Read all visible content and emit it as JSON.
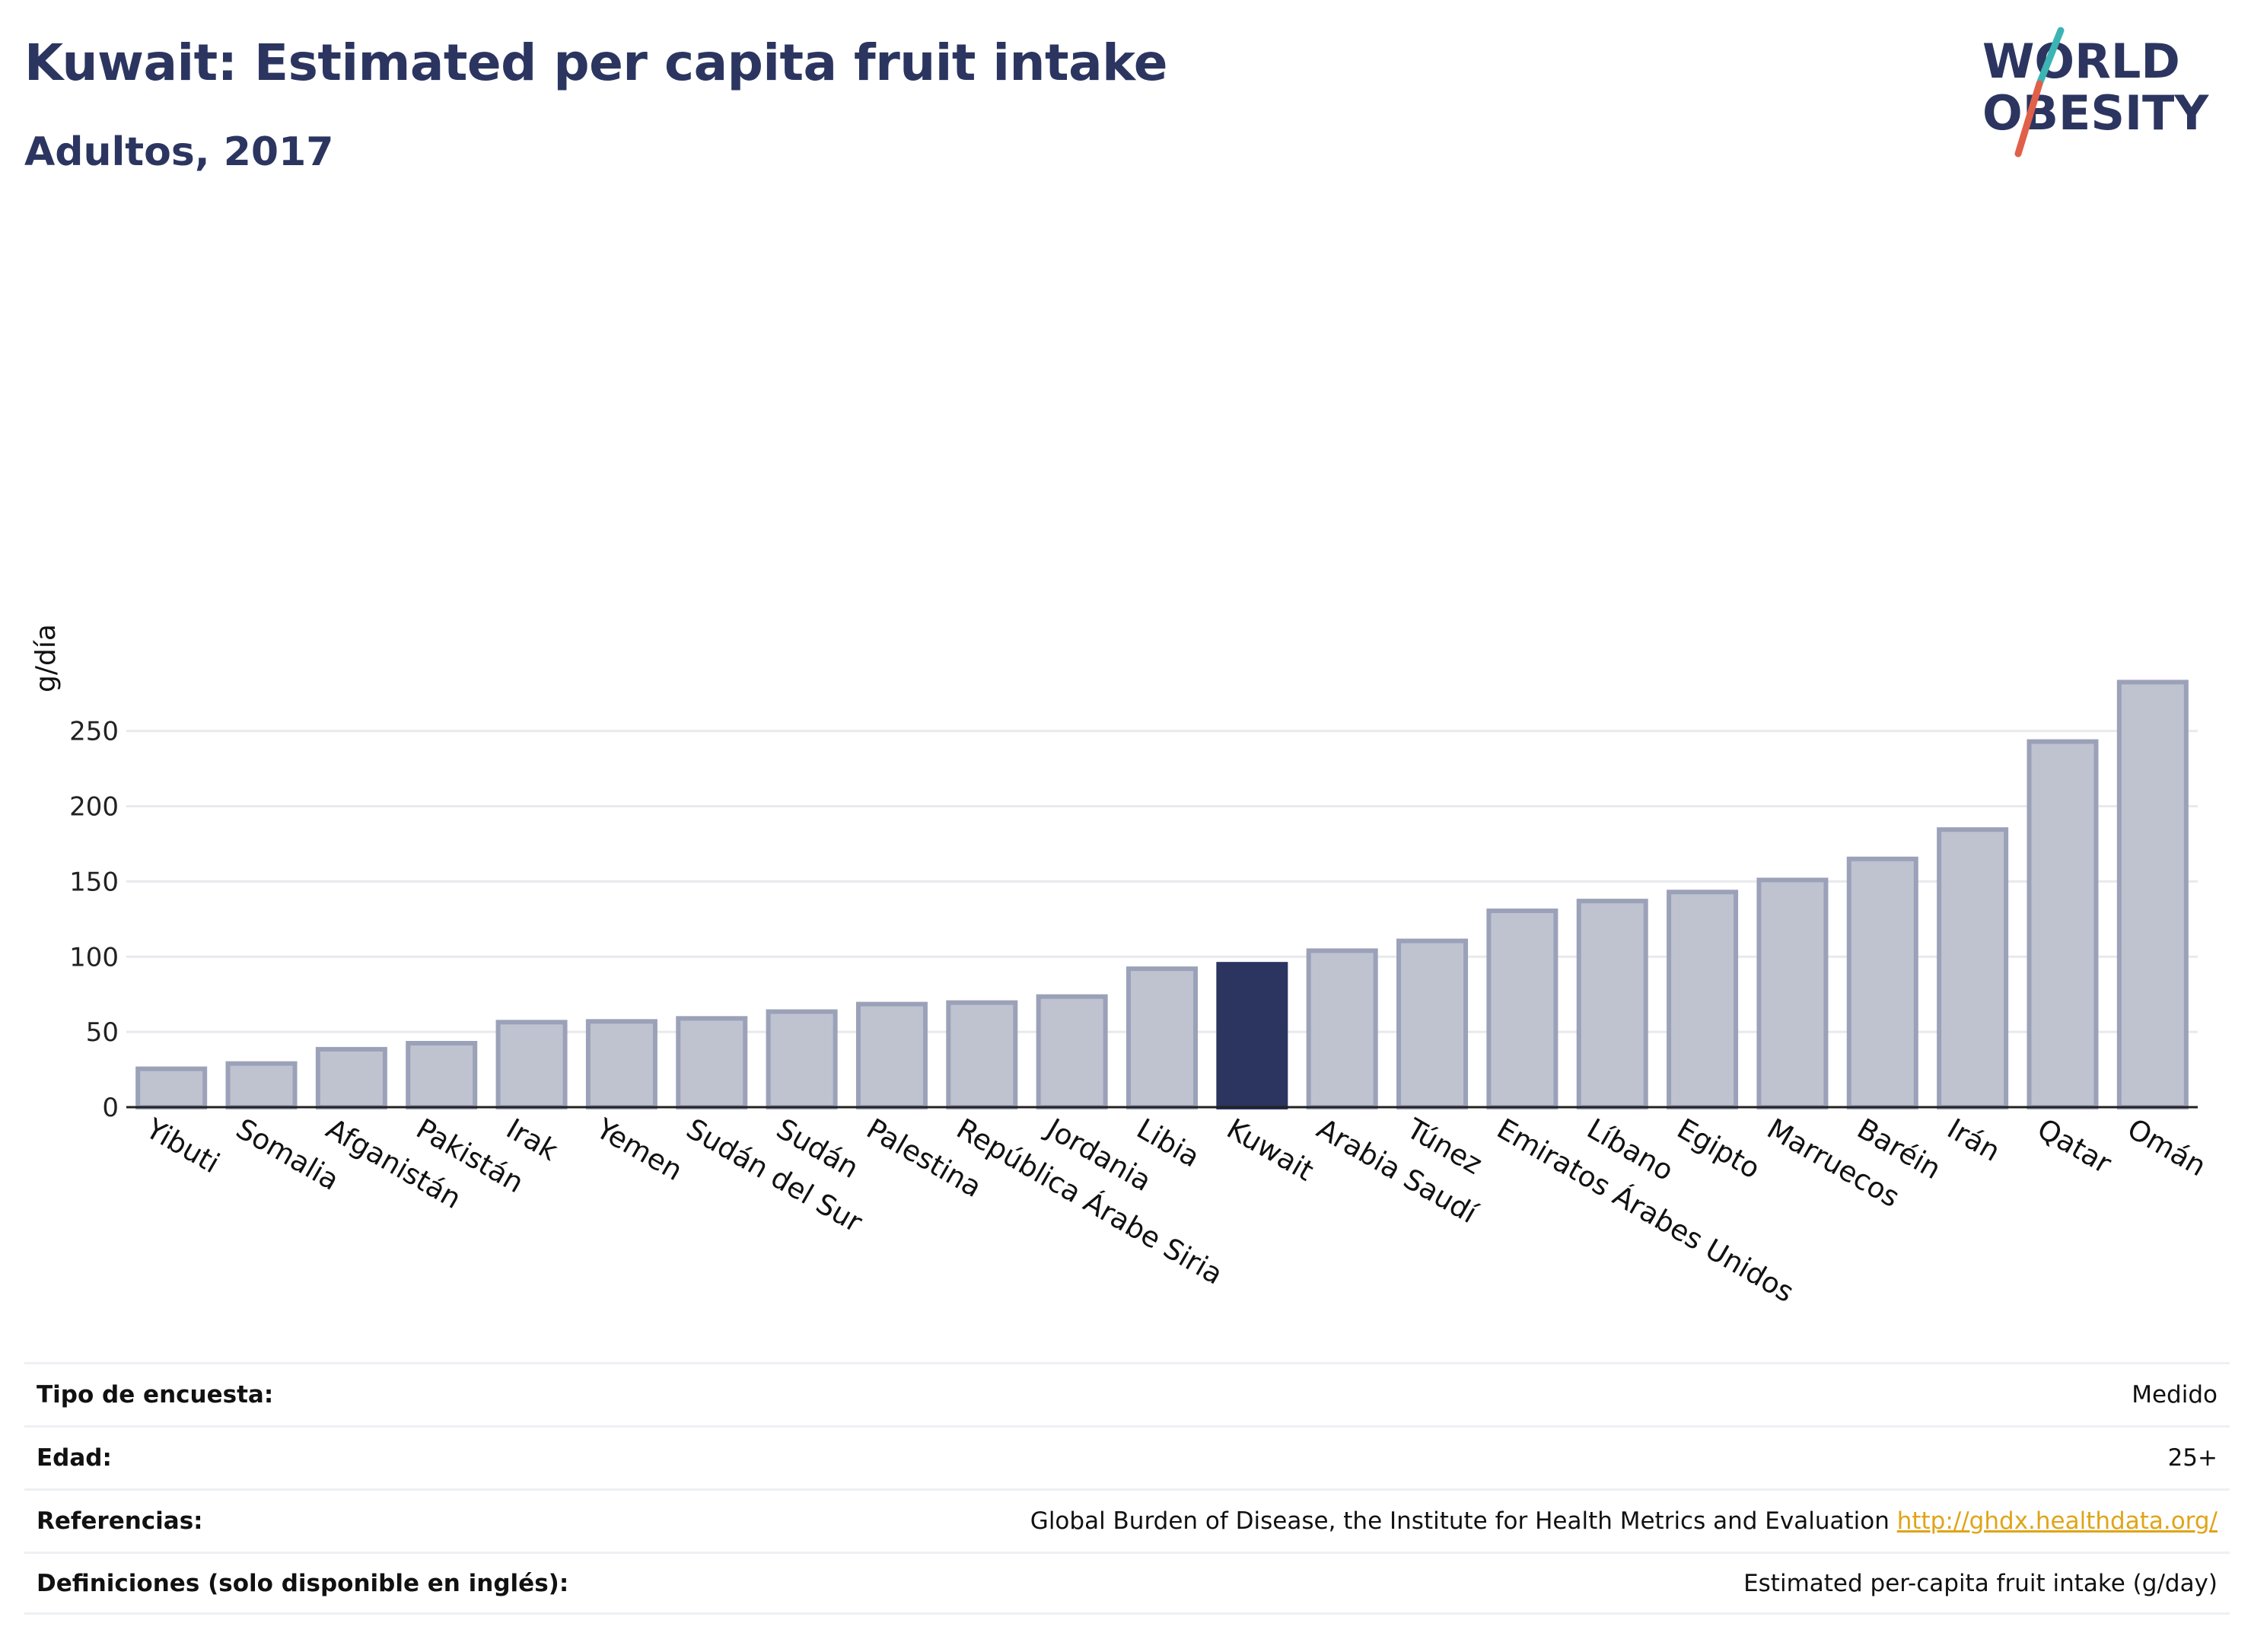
{
  "header": {
    "title": "Kuwait: Estimated per capita fruit intake",
    "subtitle": "Adultos, 2017"
  },
  "logo": {
    "line1": "WORLD",
    "line2": "OBESITY",
    "colors": {
      "text": "#2b3560",
      "slash_red": "#e0604a",
      "slash_teal": "#3cb4b4"
    }
  },
  "colors": {
    "highlight": "#2b3560",
    "bar_fill": "#bfc3d0",
    "bar_stroke": "#9ba1b8",
    "grid": "#e8e9ed"
  },
  "chart_data": {
    "type": "bar",
    "ylabel": "g/día",
    "ylim": [
      0,
      290
    ],
    "yticks": [
      0,
      50,
      100,
      150,
      200,
      250
    ],
    "grid": true,
    "highlight": "Kuwait",
    "categories": [
      "Yibuti",
      "Somalia",
      "Afganistán",
      "Pakistán",
      "Irak",
      "Yemen",
      "Sudán del Sur",
      "Sudán",
      "Palestina",
      "República Árabe Siria",
      "Jordania",
      "Libia",
      "Kuwait",
      "Arabia Saudí",
      "Túnez",
      "Emiratos Árabes Unidos",
      "Líbano",
      "Egipto",
      "Marruecos",
      "Baréin",
      "Irán",
      "Qatar",
      "Omán"
    ],
    "values": [
      25.5,
      29,
      38.5,
      42.5,
      56.5,
      57,
      59,
      63.5,
      68.5,
      69.5,
      73.5,
      92,
      95,
      104,
      110.5,
      130.5,
      137,
      143,
      151,
      165,
      184.5,
      243,
      282.5
    ]
  },
  "info": [
    {
      "key": "Tipo de encuesta:",
      "value": "Medido"
    },
    {
      "key": "Edad:",
      "value": "25+"
    },
    {
      "key": "Referencias:",
      "value": "Global Burden of Disease, the Institute for Health Metrics and Evaluation",
      "link": "http://ghdx.healthdata.org/"
    },
    {
      "key": "Definiciones (solo disponible en inglés):",
      "value": "Estimated per-capita fruit intake (g/day)"
    }
  ]
}
